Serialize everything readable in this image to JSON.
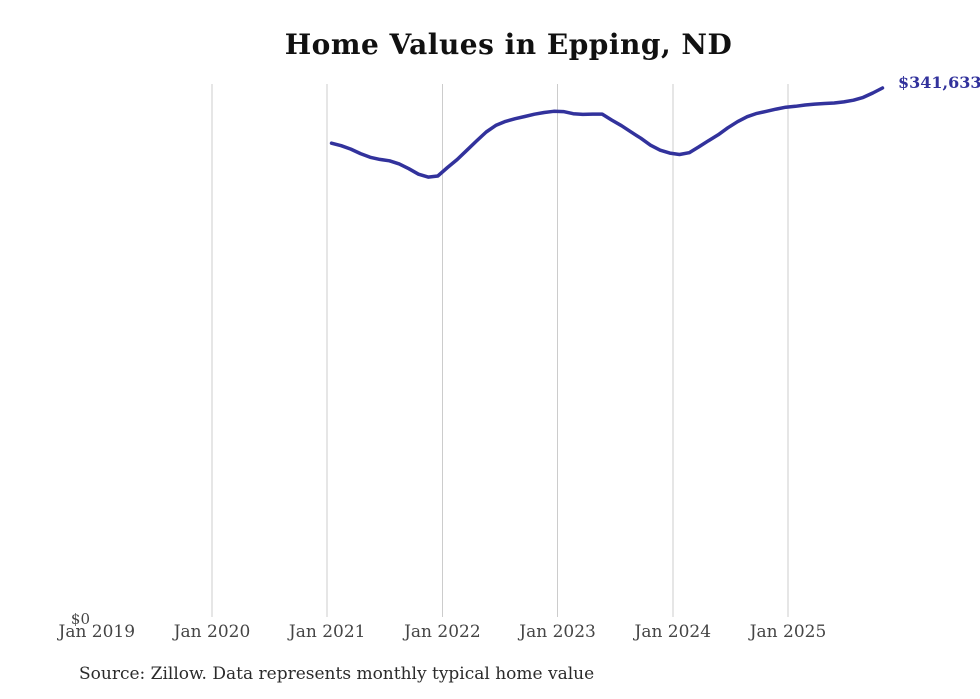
{
  "title": "Home Values in Epping, ND",
  "y_axis": {
    "zero_label": "$0"
  },
  "footer": {
    "source_note": "Source: Zillow. Data represents monthly typical home value"
  },
  "colors": {
    "background": "#ffffff",
    "line": "#32329c",
    "end_label": "#32329c",
    "grid": "#cccccc",
    "tick_text": "#454545",
    "title_text": "#111111",
    "source_text": "#2b2b2b"
  },
  "chart_data": {
    "type": "line",
    "title": "Home Values in Epping, ND",
    "x_tick_labels": [
      "Jan 2019",
      "Jan 2020",
      "Jan 2021",
      "Jan 2022",
      "Jan 2023",
      "Jan 2024",
      "Jan 2025"
    ],
    "gridlines_at": [
      "Jan 2020",
      "Jan 2021",
      "Jan 2022",
      "Jan 2023",
      "Jan 2024",
      "Jan 2025"
    ],
    "y_tick_labels": [
      "$0"
    ],
    "ylim": [
      0,
      345000
    ],
    "grid": "vertical-only",
    "legend": "none",
    "last_value": 341633,
    "last_value_label": "$341,633",
    "series": [
      {
        "name": "Monthly typical home value",
        "frequency": "monthly",
        "start_month": "2021-01",
        "end_month": "2025-10",
        "values": [
          306200,
          304600,
          302400,
          299500,
          297100,
          295800,
          294900,
          292900,
          289800,
          286300,
          284400,
          285100,
          290600,
          295700,
          301600,
          307600,
          313400,
          317600,
          320200,
          321900,
          323300,
          324800,
          325900,
          326700,
          326500,
          325100,
          324700,
          324900,
          324900,
          321000,
          317400,
          313300,
          309400,
          304900,
          301700,
          299800,
          298900,
          300100,
          303800,
          307800,
          311600,
          316100,
          320000,
          323200,
          325300,
          326700,
          328100,
          329300,
          329900,
          330700,
          331300,
          331700,
          332000,
          332700,
          333800,
          335600,
          338400,
          341633
        ]
      }
    ]
  }
}
